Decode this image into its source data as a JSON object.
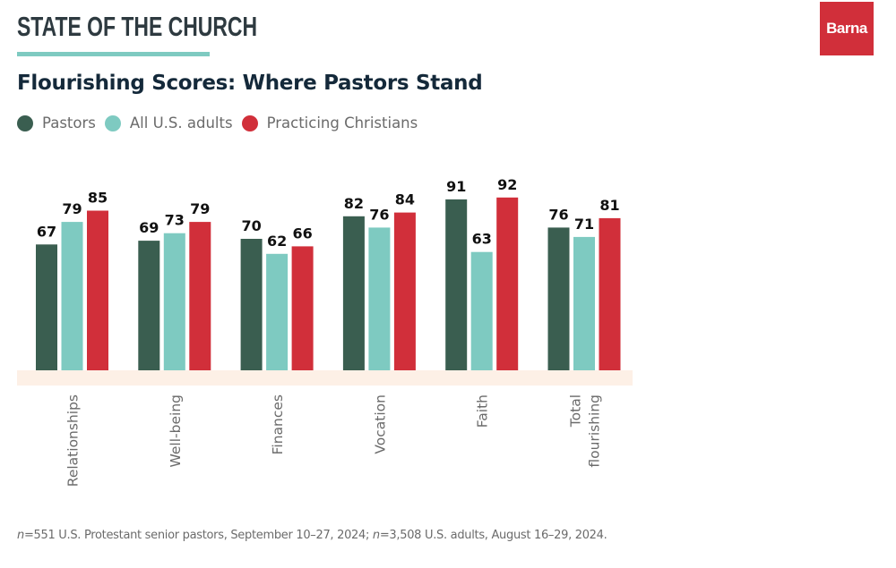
{
  "header": {
    "section": "STATE OF THE CHURCH",
    "logo_text": "Barna"
  },
  "colors": {
    "pastors": "#3a5e50",
    "all_us_adults": "#7ecac1",
    "practicing_christians": "#d12f3a",
    "baseline_band": "#fdf0e6",
    "accent_rule": "#7ecac1"
  },
  "chart_data": {
    "type": "bar",
    "title": "Flourishing Scores: Where Pastors Stand",
    "xlabel": "",
    "ylabel": "",
    "ylim": [
      0,
      100
    ],
    "grid": false,
    "legend_position": "top-left",
    "categories": [
      "Relationships",
      "Well-being",
      "Finances",
      "Vocation",
      "Faith",
      "Total flourishing"
    ],
    "category_label_lines": [
      [
        "Relationships"
      ],
      [
        "Well-being"
      ],
      [
        "Finances"
      ],
      [
        "Vocation"
      ],
      [
        "Faith"
      ],
      [
        "Total",
        "flourishing"
      ]
    ],
    "series": [
      {
        "name": "Pastors",
        "color": "#3a5e50",
        "values": [
          67,
          69,
          70,
          82,
          91,
          76
        ]
      },
      {
        "name": "All U.S. adults",
        "color": "#7ecac1",
        "values": [
          79,
          73,
          62,
          76,
          63,
          71
        ]
      },
      {
        "name": "Practicing Christians",
        "color": "#d12f3a",
        "values": [
          85,
          79,
          66,
          84,
          92,
          81
        ]
      }
    ]
  },
  "footnote": {
    "n1_prefix": "n",
    "n1_text": "=551 U.S. Protestant senior pastors, September 10–27, 2024; ",
    "n2_prefix": "n",
    "n2_text": "=3,508 U.S. adults, August 16–29, 2024."
  }
}
